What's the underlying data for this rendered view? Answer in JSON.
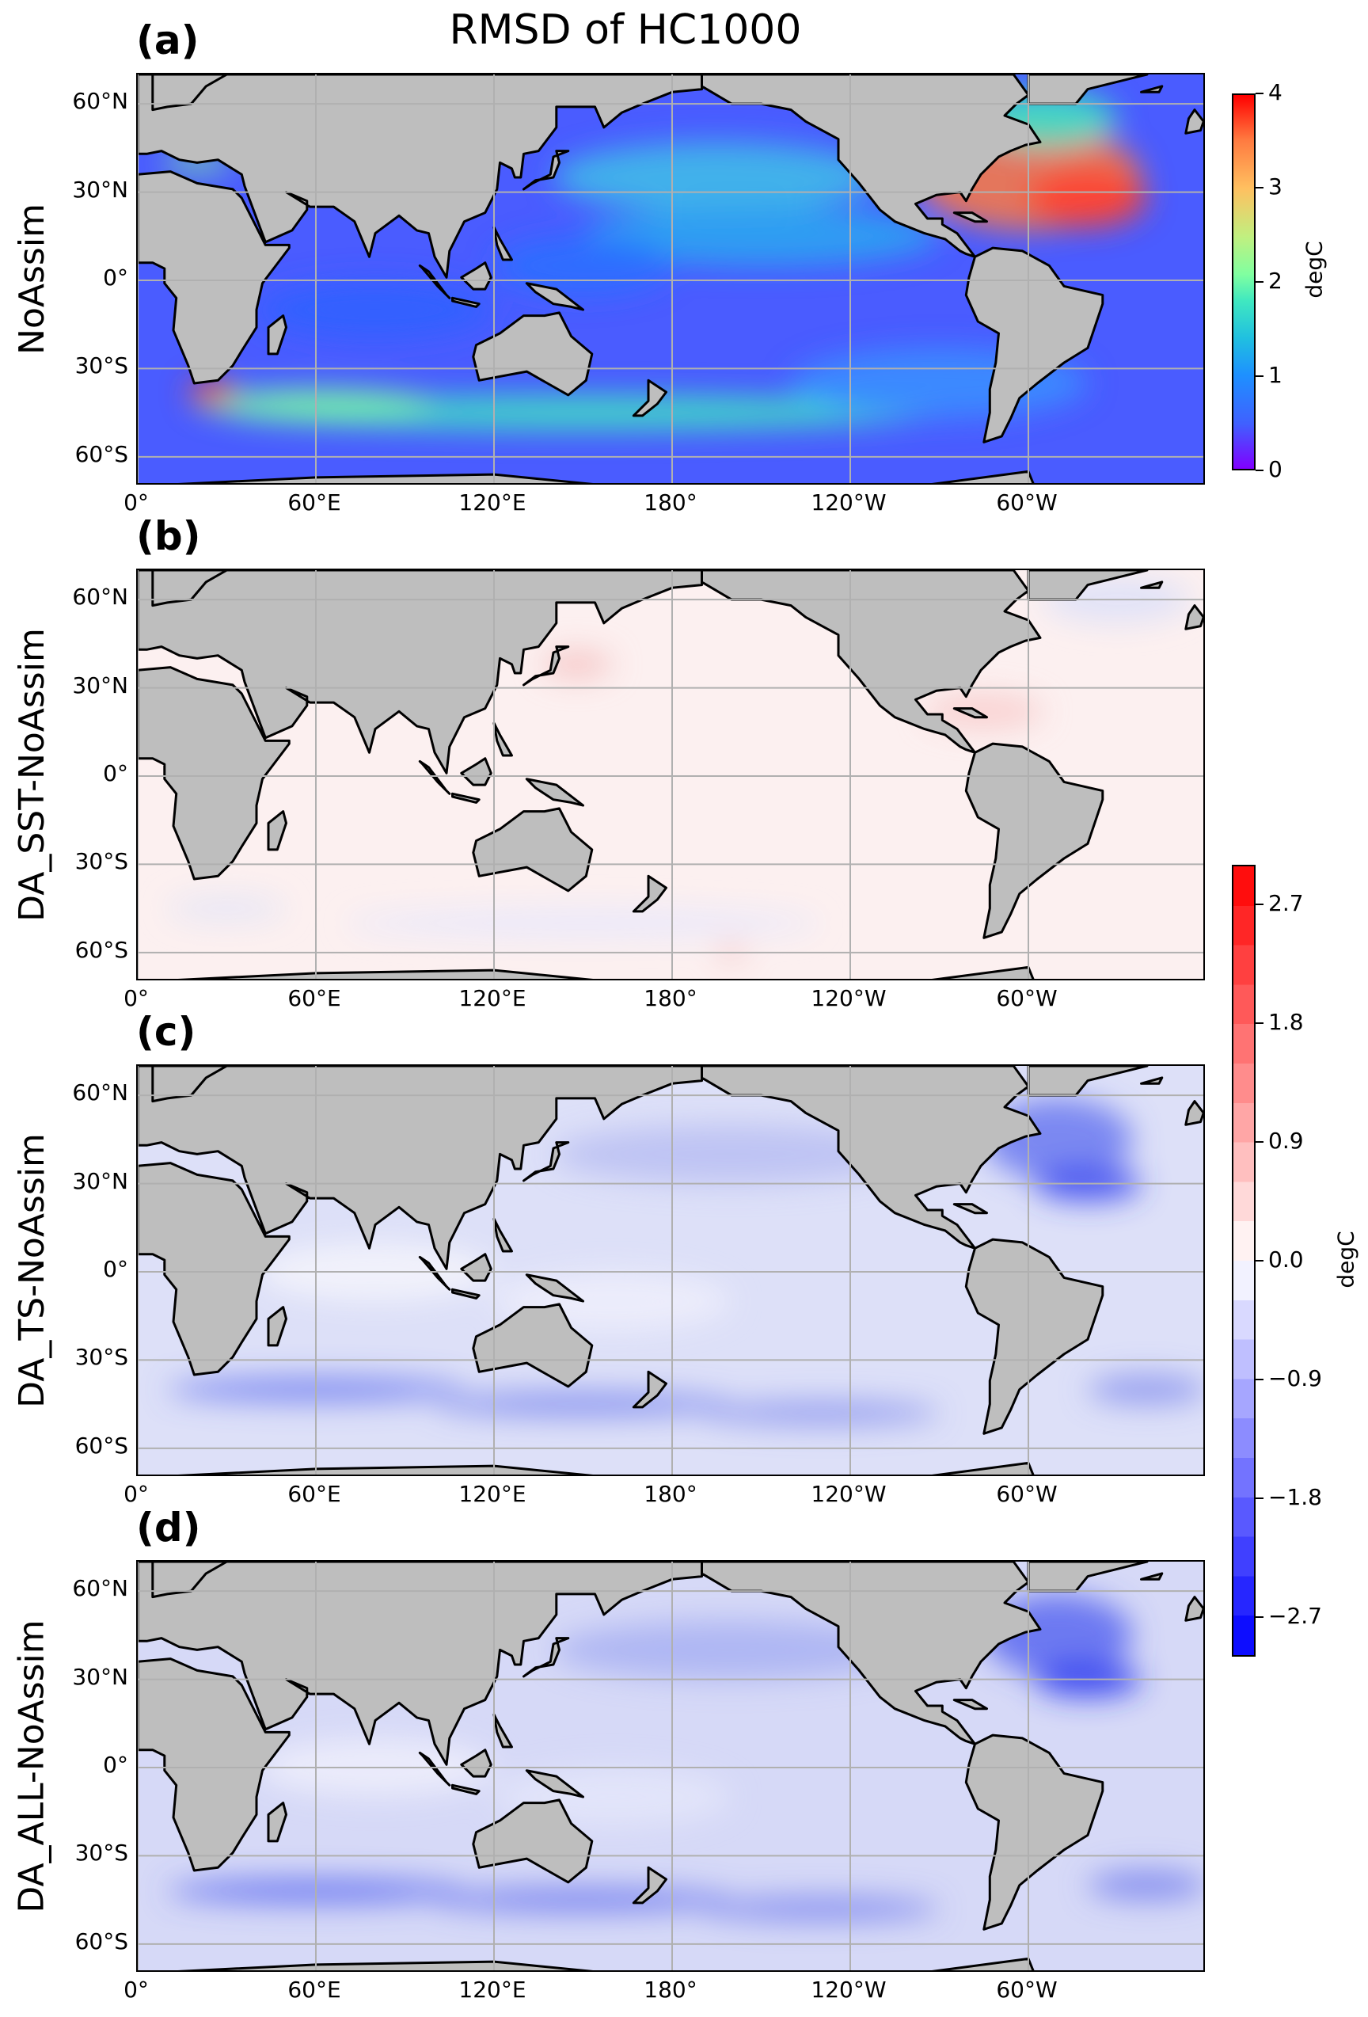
{
  "figure": {
    "title": "RMSD of HC1000"
  },
  "axes": {
    "lat_labels": [
      "60°N",
      "30°N",
      "0°",
      "30°S",
      "60°S"
    ],
    "lat_values": [
      60,
      30,
      0,
      -30,
      -60
    ],
    "lon_labels": [
      "0°",
      "60°E",
      "120°E",
      "180°",
      "120°W",
      "60°W"
    ],
    "lon_values": [
      0,
      60,
      120,
      180,
      240,
      300
    ],
    "lon_range": [
      0,
      360
    ],
    "lat_range": [
      -70,
      70
    ],
    "grid": true
  },
  "panels": [
    {
      "letter": "(a)",
      "ylabel": "NoAssim",
      "field": "absolute"
    },
    {
      "letter": "(b)",
      "ylabel": "DA_SST-NoAssim",
      "field": "difference"
    },
    {
      "letter": "(c)",
      "ylabel": "DA_TS-NoAssim",
      "field": "difference"
    },
    {
      "letter": "(d)",
      "ylabel": "DA_ALL-NoAssim",
      "field": "difference"
    }
  ],
  "colorbars": {
    "absolute": {
      "label": "degC",
      "ticks": [
        "0",
        "1",
        "2",
        "3",
        "4"
      ],
      "range": [
        0,
        4
      ],
      "colormap": "rainbow"
    },
    "difference": {
      "label": "degC",
      "ticks": [
        "2.7",
        "1.8",
        "0.9",
        "0.0",
        "−0.9",
        "−1.8",
        "−2.7"
      ],
      "range": [
        -3,
        3
      ],
      "colormap": "bwr"
    }
  },
  "colors": {
    "land": "#bebebe",
    "coast": "#000000",
    "grid": "#b0b0b0",
    "diff_positive": "#ff0000",
    "diff_negative": "#0000ff"
  },
  "chart_data": {
    "type": "heatmap",
    "title": "RMSD of HC1000",
    "unit": "degC",
    "panels": [
      {
        "name": "NoAssim",
        "vmin": 0,
        "vmax": 4,
        "features": [
          {
            "region": "Gulf Stream / North Atlantic",
            "value": 3.2
          },
          {
            "region": "North Pacific",
            "value": 1.4
          },
          {
            "region": "Southern Ocean band",
            "value": 1.6
          },
          {
            "region": "Agulhas",
            "value": 3.5
          },
          {
            "region": "Tropical Indo-Pacific",
            "value": 0.5
          }
        ]
      },
      {
        "name": "DA_SST-NoAssim",
        "vmin": -3,
        "vmax": 3,
        "features": [
          {
            "region": "Kuroshio",
            "value": 0.5
          },
          {
            "region": "Gulf of Mexico / Caribbean",
            "value": 0.6
          },
          {
            "region": "Open ocean",
            "value": 0.1
          },
          {
            "region": "Southern Ocean",
            "value": -0.2
          }
        ]
      },
      {
        "name": "DA_TS-NoAssim",
        "vmin": -3,
        "vmax": 3,
        "features": [
          {
            "region": "North Atlantic",
            "value": -2.4
          },
          {
            "region": "North Pacific",
            "value": -0.8
          },
          {
            "region": "Southern Ocean band",
            "value": -1.6
          },
          {
            "region": "Tropics",
            "value": -0.3
          }
        ]
      },
      {
        "name": "DA_ALL-NoAssim",
        "vmin": -3,
        "vmax": 3,
        "features": [
          {
            "region": "North Atlantic",
            "value": -2.5
          },
          {
            "region": "North Pacific",
            "value": -0.9
          },
          {
            "region": "Southern Ocean band",
            "value": -1.7
          },
          {
            "region": "Tropics",
            "value": -0.4
          }
        ]
      }
    ]
  }
}
